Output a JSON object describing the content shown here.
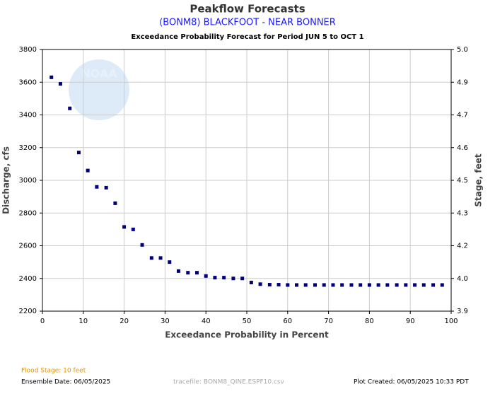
{
  "chart_data": {
    "type": "scatter",
    "title": "Peakflow Forecasts",
    "subtitle": "(BONM8) BLACKFOOT - NEAR BONNER",
    "period": "Exceedance Probability Forecast for Period JUN 5 to OCT 1",
    "xlabel": "Exceedance Probability in Percent",
    "ylabel": "Discharge, cfs",
    "y2label": "Stage, feet",
    "watermark": "NOAA",
    "flood_stage": "Flood Stage: 10 feet",
    "ensemble_date": "Ensemble Date: 06/05/2025",
    "tracefile": "tracefile: BONM8_QINE.ESPF10.csv",
    "plot_created": "Plot Created: 06/05/2025 10:33 PDT",
    "xlim": [
      0,
      100
    ],
    "xticks": [
      0,
      10,
      20,
      30,
      40,
      50,
      60,
      70,
      80,
      90,
      100
    ],
    "ylim": [
      2200,
      3800
    ],
    "yticks": [
      2200,
      2400,
      2600,
      2800,
      3000,
      3200,
      3400,
      3600,
      3800
    ],
    "y2lim": [
      3.9,
      5.0
    ],
    "y2ticks": [
      3.9,
      {
        "value": 4.0,
        "label": "4.0"
      },
      4.2,
      4.3,
      4.5,
      4.6,
      4.7,
      4.9,
      {
        "value": 5.0,
        "label": "5.0"
      }
    ],
    "grid": true,
    "color": "#00007f",
    "x": [
      2.2,
      4.4,
      6.7,
      8.9,
      11.1,
      13.3,
      15.6,
      17.8,
      20.0,
      22.2,
      24.4,
      26.7,
      28.9,
      31.1,
      33.3,
      35.6,
      37.8,
      40.0,
      42.2,
      44.4,
      46.7,
      48.9,
      51.1,
      53.3,
      55.6,
      57.8,
      60.0,
      62.2,
      64.4,
      66.7,
      68.9,
      71.1,
      73.3,
      75.6,
      77.8,
      80.0,
      82.2,
      84.4,
      86.7,
      88.9,
      91.1,
      93.3,
      95.6,
      97.8
    ],
    "values": [
      3630,
      3590,
      3440,
      3170,
      3060,
      2960,
      2955,
      2860,
      2715,
      2700,
      2605,
      2525,
      2525,
      2500,
      2445,
      2435,
      2435,
      2415,
      2405,
      2405,
      2400,
      2400,
      2375,
      2365,
      2362,
      2362,
      2360,
      2360,
      2360,
      2360,
      2360,
      2360,
      2360,
      2360,
      2360,
      2360,
      2360,
      2360,
      2360,
      2360,
      2360,
      2360,
      2360,
      2360
    ]
  }
}
